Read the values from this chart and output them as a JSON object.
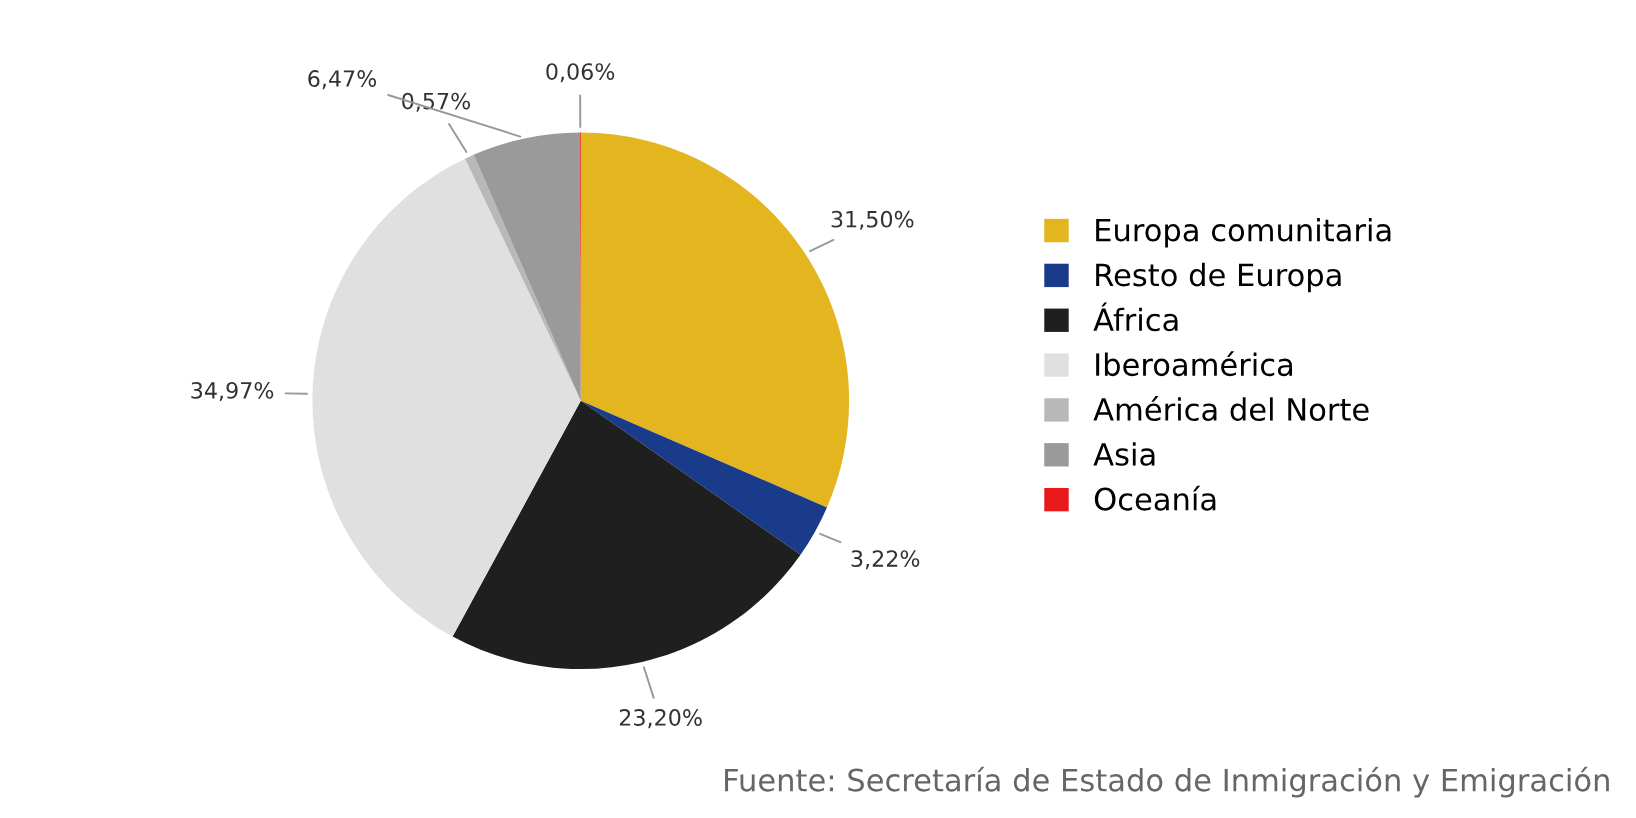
{
  "chart_data": {
    "type": "pie",
    "categories": [
      "Europa comunitaria",
      "Resto de Europa",
      "África",
      "Iberoamérica",
      "América del Norte",
      "Asia",
      "Oceanía"
    ],
    "values": [
      31.5,
      3.22,
      23.2,
      34.97,
      0.57,
      6.47,
      0.06
    ],
    "value_labels": [
      "31,50%",
      "3,22%",
      "23,20%",
      "34,97%",
      "0,57%",
      "6,47%",
      "0,06%"
    ],
    "colors": [
      "#e3b51f",
      "#1a3a8a",
      "#1f1f1f",
      "#e0e0e0",
      "#b8b8b8",
      "#9a9a9a",
      "#e8191b"
    ],
    "legend": "right",
    "annotations": [
      "Fuente: Secretaría de Estado de Inmigración y Emigración"
    ]
  }
}
